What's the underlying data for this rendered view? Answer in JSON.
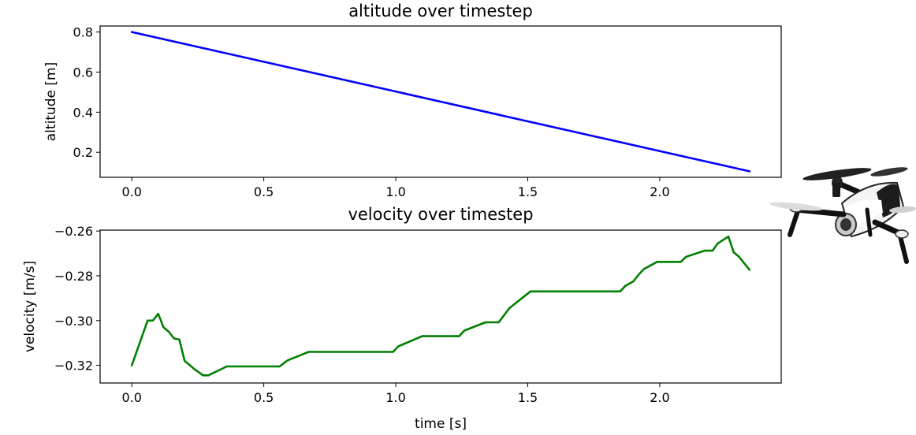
{
  "chart_data": [
    {
      "type": "line",
      "title": "altitude over timestep",
      "xlabel": "",
      "ylabel": "altitude [m]",
      "xlim": [
        -0.12,
        2.46
      ],
      "ylim": [
        0.075,
        0.83
      ],
      "xticks": [
        0.0,
        0.5,
        1.0,
        1.5,
        2.0
      ],
      "xtick_labels": [
        "0.0",
        "0.5",
        "1.0",
        "1.5",
        "2.0"
      ],
      "yticks": [
        0.2,
        0.4,
        0.6,
        0.8
      ],
      "ytick_labels": [
        "0.2",
        "0.4",
        "0.6",
        "0.8"
      ],
      "grid": false,
      "series": [
        {
          "color": "#0000ff",
          "x": [
            0.0,
            2.34
          ],
          "y": [
            0.8,
            0.105
          ]
        }
      ]
    },
    {
      "type": "line",
      "title": "velocity over timestep",
      "xlabel": "time [s]",
      "ylabel": "velocity [m/s]",
      "xlim": [
        -0.12,
        2.46
      ],
      "ylim": [
        -0.3279,
        -0.2596
      ],
      "xticks": [
        0.0,
        0.5,
        1.0,
        1.5,
        2.0
      ],
      "xtick_labels": [
        "0.0",
        "0.5",
        "1.0",
        "1.5",
        "2.0"
      ],
      "yticks": [
        -0.32,
        -0.3,
        -0.28,
        -0.26
      ],
      "ytick_labels": [
        "−0.32",
        "−0.30",
        "−0.28",
        "−0.26"
      ],
      "grid": false,
      "series": [
        {
          "color": "#008000",
          "x": [
            0.0,
            0.03,
            0.06,
            0.08,
            0.1,
            0.12,
            0.14,
            0.16,
            0.18,
            0.2,
            0.24,
            0.27,
            0.29,
            0.36,
            0.45,
            0.56,
            0.59,
            0.67,
            0.8,
            0.99,
            1.01,
            1.1,
            1.24,
            1.26,
            1.34,
            1.39,
            1.43,
            1.51,
            1.85,
            1.87,
            1.9,
            1.92,
            1.94,
            1.99,
            2.08,
            2.1,
            2.17,
            2.2,
            2.22,
            2.26,
            2.28,
            2.3,
            2.34
          ],
          "y": [
            -0.32,
            -0.31,
            -0.3,
            -0.3,
            -0.297,
            -0.303,
            -0.305,
            -0.308,
            -0.3085,
            -0.318,
            -0.322,
            -0.3245,
            -0.3245,
            -0.3205,
            -0.3205,
            -0.3205,
            -0.3178,
            -0.314,
            -0.314,
            -0.314,
            -0.3115,
            -0.307,
            -0.307,
            -0.3045,
            -0.3008,
            -0.3008,
            -0.2945,
            -0.287,
            -0.287,
            -0.2845,
            -0.2825,
            -0.2795,
            -0.277,
            -0.2738,
            -0.2738,
            -0.2715,
            -0.2688,
            -0.2688,
            -0.2655,
            -0.2625,
            -0.2695,
            -0.2715,
            -0.2773
          ]
        }
      ]
    }
  ]
}
